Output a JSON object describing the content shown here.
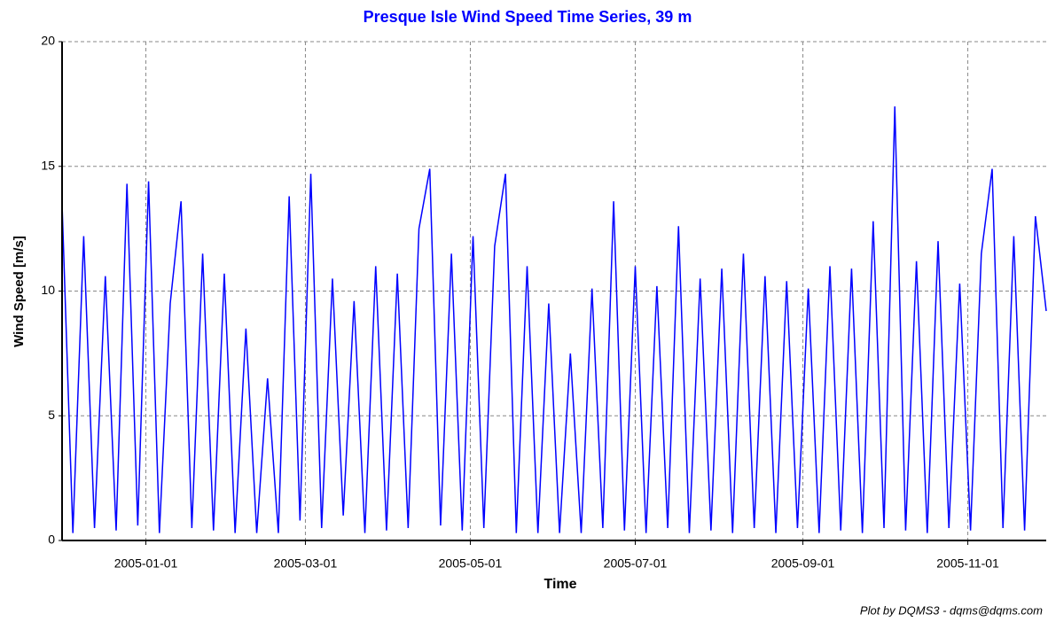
{
  "chart_data": {
    "type": "line",
    "title": "Presque Isle Wind Speed Time Series, 39 m",
    "x_label": "Time",
    "y_label": "Wind Speed [m/s]",
    "footer": "Plot by DQMS3 - dqms@dqms.com",
    "xlim": [
      "2004-12-01",
      "2005-11-30"
    ],
    "xticks": [
      "2005-01-01",
      "2005-03-01",
      "2005-05-01",
      "2005-07-01",
      "2005-09-01",
      "2005-11-01"
    ],
    "ylim": [
      0,
      20
    ],
    "yticks": [
      0,
      5,
      10,
      15,
      20
    ],
    "grid": true,
    "series": [
      {
        "name": "Wind Speed",
        "color": "#0000ff",
        "x": [
          "2004-12-01",
          "2004-12-05",
          "2004-12-09",
          "2004-12-13",
          "2004-12-17",
          "2004-12-21",
          "2004-12-25",
          "2004-12-29",
          "2005-01-02",
          "2005-01-06",
          "2005-01-10",
          "2005-01-14",
          "2005-01-18",
          "2005-01-22",
          "2005-01-26",
          "2005-01-30",
          "2005-02-03",
          "2005-02-07",
          "2005-02-11",
          "2005-02-15",
          "2005-02-19",
          "2005-02-23",
          "2005-02-27",
          "2005-03-03",
          "2005-03-07",
          "2005-03-11",
          "2005-03-15",
          "2005-03-19",
          "2005-03-23",
          "2005-03-27",
          "2005-03-31",
          "2005-04-04",
          "2005-04-08",
          "2005-04-12",
          "2005-04-16",
          "2005-04-20",
          "2005-04-24",
          "2005-04-28",
          "2005-05-02",
          "2005-05-06",
          "2005-05-10",
          "2005-05-14",
          "2005-05-18",
          "2005-05-22",
          "2005-05-26",
          "2005-05-30",
          "2005-06-03",
          "2005-06-07",
          "2005-06-11",
          "2005-06-15",
          "2005-06-19",
          "2005-06-23",
          "2005-06-27",
          "2005-07-01",
          "2005-07-05",
          "2005-07-09",
          "2005-07-13",
          "2005-07-17",
          "2005-07-21",
          "2005-07-25",
          "2005-07-29",
          "2005-08-02",
          "2005-08-06",
          "2005-08-10",
          "2005-08-14",
          "2005-08-18",
          "2005-08-22",
          "2005-08-26",
          "2005-08-30",
          "2005-09-03",
          "2005-09-07",
          "2005-09-11",
          "2005-09-15",
          "2005-09-19",
          "2005-09-23",
          "2005-09-27",
          "2005-10-01",
          "2005-10-05",
          "2005-10-09",
          "2005-10-13",
          "2005-10-17",
          "2005-10-21",
          "2005-10-25",
          "2005-10-29",
          "2005-11-02",
          "2005-11-06",
          "2005-11-10",
          "2005-11-14",
          "2005-11-18",
          "2005-11-22",
          "2005-11-26",
          "2005-11-30"
        ],
        "values": [
          13.5,
          0.3,
          12.2,
          0.5,
          10.6,
          0.4,
          14.3,
          0.6,
          14.4,
          0.3,
          9.5,
          13.6,
          0.5,
          11.5,
          0.4,
          10.7,
          0.3,
          8.5,
          0.3,
          6.5,
          0.3,
          13.8,
          0.8,
          14.7,
          0.5,
          10.5,
          1.0,
          9.6,
          0.3,
          11.0,
          0.4,
          10.7,
          0.5,
          12.5,
          14.9,
          0.6,
          11.5,
          0.4,
          12.2,
          0.5,
          11.8,
          14.7,
          0.3,
          11.0,
          0.3,
          9.5,
          0.3,
          7.5,
          0.3,
          10.1,
          0.5,
          13.6,
          0.4,
          11.0,
          0.3,
          10.2,
          0.5,
          12.6,
          0.3,
          10.5,
          0.4,
          10.9,
          0.3,
          11.5,
          0.5,
          10.6,
          0.3,
          10.4,
          0.5,
          10.1,
          0.3,
          11.0,
          0.4,
          10.9,
          0.3,
          12.8,
          0.5,
          17.4,
          0.4,
          11.2,
          0.3,
          12.0,
          0.5,
          10.3,
          0.4,
          11.5,
          14.9,
          0.5,
          12.2,
          0.4,
          13.0,
          9.2
        ]
      }
    ]
  }
}
